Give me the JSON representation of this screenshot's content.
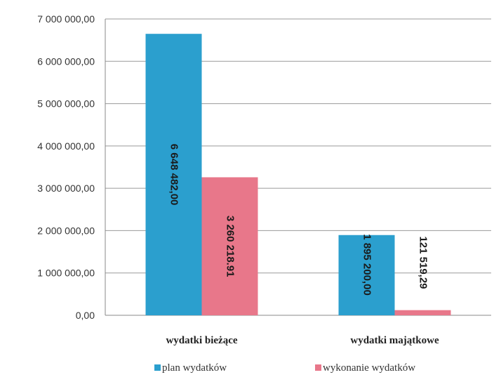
{
  "chart_data": {
    "type": "bar",
    "title": "",
    "xlabel": "",
    "ylabel": "",
    "categories": [
      "wydatki bieżące",
      "wydatki majątkowe"
    ],
    "series": [
      {
        "name": "plan wydatków",
        "color": "#2b9fce",
        "values": [
          6648482.0,
          1895200.0
        ],
        "labels": [
          "6 648 482,00",
          "1 895 200,00"
        ]
      },
      {
        "name": "wykonanie wydatków",
        "color": "#e8778a",
        "values": [
          3260218.91,
          121519.29
        ],
        "labels": [
          "3 260 218.91",
          "121 519,29"
        ]
      }
    ],
    "ylim": [
      0,
      7000000
    ],
    "yticks": [
      0,
      1000000,
      2000000,
      3000000,
      4000000,
      5000000,
      6000000,
      7000000
    ],
    "ytick_labels": [
      "0,00",
      "1 000 000,00",
      "2 000 000,00",
      "3 000 000,00",
      "4 000 000,00",
      "5 000 000,00",
      "6 000 000,00",
      "7 000 000,00"
    ],
    "grid": true,
    "legend_position": "bottom",
    "label_orientation": "vertical"
  }
}
